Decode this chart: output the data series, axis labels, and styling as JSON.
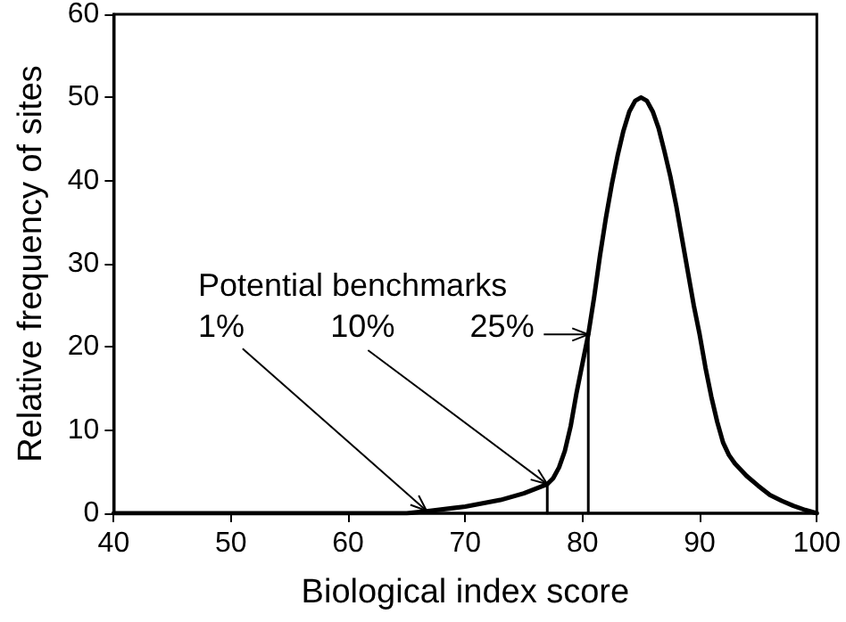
{
  "chart_data": {
    "type": "line",
    "xlabel": "Biological index score",
    "ylabel": "Relative frequency of sites",
    "xlim": [
      40,
      100
    ],
    "xticks": [
      40,
      50,
      60,
      70,
      80,
      90,
      100
    ],
    "ylim": [
      0,
      60
    ],
    "yticks": [
      0,
      10,
      20,
      30,
      40,
      50,
      60
    ],
    "grid": false,
    "marker": "none",
    "line_style": "solid",
    "series": [
      {
        "color": "#000000",
        "x": [
          40,
          50,
          60,
          65,
          67,
          70,
          73,
          75,
          77,
          77.5,
          78,
          78.5,
          79,
          79.5,
          80,
          80.5,
          81,
          81.5,
          82,
          82.5,
          83,
          83.5,
          84,
          84.5,
          85,
          85.5,
          86,
          86.5,
          87,
          87.5,
          88,
          88.5,
          89,
          89.5,
          90,
          90.5,
          91,
          91.5,
          92,
          92.5,
          93,
          94,
          95,
          96,
          97,
          98,
          99,
          100
        ],
        "values": [
          0,
          0,
          0,
          0,
          0.3,
          0.8,
          1.6,
          2.4,
          3.5,
          4.2,
          5.5,
          7.5,
          10.5,
          14.5,
          18,
          21.5,
          26,
          31,
          35.5,
          39.5,
          43,
          46,
          48.3,
          49.6,
          50,
          49.6,
          48.3,
          46.3,
          43.5,
          40.5,
          37,
          33,
          29,
          25,
          21.5,
          17.5,
          14,
          11,
          8.5,
          7,
          6,
          4.5,
          3.3,
          2.2,
          1.5,
          0.9,
          0.4,
          0
        ]
      },
      {
        "color": "#000000",
        "x": [
          77,
          77
        ],
        "values": [
          0,
          3.5
        ]
      },
      {
        "color": "#000000",
        "x": [
          80.5,
          80.5
        ],
        "values": [
          0,
          21.5
        ]
      }
    ],
    "annotations": [
      "Potential benchmarks",
      {
        "text": "1%",
        "x": 66.7,
        "y": 0.3
      },
      {
        "text": "10%",
        "x": 77,
        "y": 3.5
      },
      {
        "text": "25%",
        "x": 80.5,
        "y": 21.5
      }
    ]
  }
}
